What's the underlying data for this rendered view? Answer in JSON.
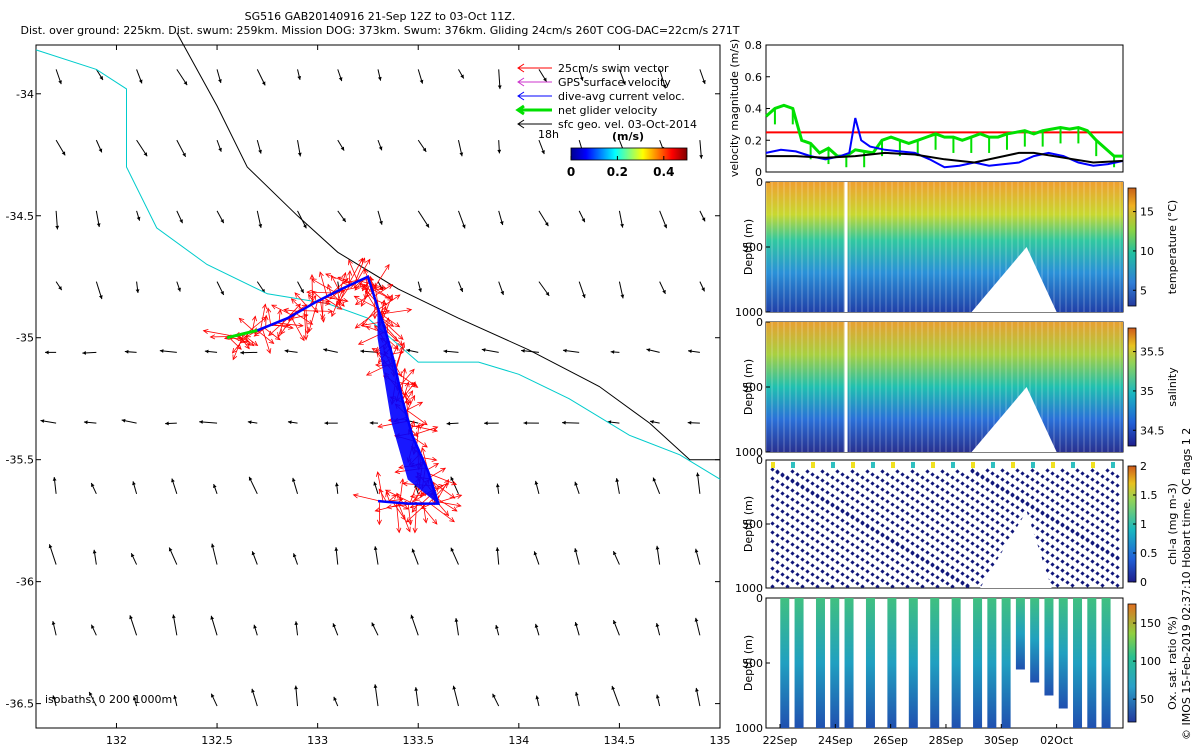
{
  "title": {
    "line1": "SG516 GAB20140916 21-Sep 12Z to 03-Oct 11Z.",
    "line2": "Dist. over ground: 225km. Dist. swum: 259km. Mission DOG: 373km. Swum: 376km. Gliding 24cm/s 260T COG-DAC=22cm/s 271T"
  },
  "colors": {
    "swim": "#ff0000",
    "gps": "#cc33cc",
    "dac": "#0000ff",
    "net": "#00e000",
    "geo": "#000000",
    "iso200": "#00cccc",
    "iso1000": "#000000"
  },
  "chart_data": [
    {
      "type": "map",
      "xlim": [
        131.6,
        135
      ],
      "ylim": [
        -36.6,
        -33.8
      ],
      "xticks": [
        132,
        132.5,
        133,
        133.5,
        134,
        134.5,
        135
      ],
      "xtick_labels": [
        "132",
        "132.5",
        "133",
        "133.5",
        "134",
        "134.5",
        "135"
      ],
      "yticks": [
        -34,
        -34.5,
        -35,
        -35.5,
        -36,
        -36.5
      ],
      "ytick_labels": [
        "-34",
        "-34.5",
        "-35",
        "-35.5",
        "-36",
        "-36.5"
      ],
      "legend": [
        {
          "label": "25cm/s swim vector",
          "color": "#ff0000"
        },
        {
          "label": "GPS surface velocity",
          "color": "#cc33cc"
        },
        {
          "label": "dive-avg current veloc.",
          "color": "#0000ff"
        },
        {
          "label": "net glider velocity",
          "color": "#00e000"
        },
        {
          "label": "sfc geo. vel. 03-Oct-2014",
          "color": "#000000"
        }
      ],
      "legend_note": "18h",
      "colorbar": {
        "label": "(m/s)",
        "ticks": [
          "0",
          "0.2",
          "0.4"
        ],
        "range": [
          0,
          0.5
        ]
      },
      "isobath_text": "isobaths: 0   200  1000m",
      "track": [
        {
          "lon": 132.55,
          "lat": -35.0
        },
        {
          "lon": 132.7,
          "lat": -34.97
        },
        {
          "lon": 132.85,
          "lat": -34.92
        },
        {
          "lon": 133.0,
          "lat": -34.85
        },
        {
          "lon": 133.12,
          "lat": -34.8
        },
        {
          "lon": 133.25,
          "lat": -34.75
        },
        {
          "lon": 133.3,
          "lat": -34.88
        },
        {
          "lon": 133.33,
          "lat": -34.95
        },
        {
          "lon": 133.38,
          "lat": -35.1
        },
        {
          "lon": 133.42,
          "lat": -35.25
        },
        {
          "lon": 133.47,
          "lat": -35.4
        },
        {
          "lon": 133.55,
          "lat": -35.55
        },
        {
          "lon": 133.6,
          "lat": -35.68
        },
        {
          "lon": 133.45,
          "lat": -35.68
        },
        {
          "lon": 133.3,
          "lat": -35.67
        }
      ],
      "isobath200": [
        {
          "lon": 131.6,
          "lat": -33.82
        },
        {
          "lon": 131.9,
          "lat": -33.9
        },
        {
          "lon": 132.05,
          "lat": -33.98
        },
        {
          "lon": 132.05,
          "lat": -34.3
        },
        {
          "lon": 132.2,
          "lat": -34.55
        },
        {
          "lon": 132.45,
          "lat": -34.7
        },
        {
          "lon": 132.75,
          "lat": -34.82
        },
        {
          "lon": 133.05,
          "lat": -34.86
        },
        {
          "lon": 133.25,
          "lat": -34.92
        },
        {
          "lon": 133.5,
          "lat": -35.1
        },
        {
          "lon": 133.8,
          "lat": -35.1
        },
        {
          "lon": 134.0,
          "lat": -35.15
        },
        {
          "lon": 134.25,
          "lat": -35.25
        },
        {
          "lon": 134.55,
          "lat": -35.4
        },
        {
          "lon": 134.8,
          "lat": -35.48
        },
        {
          "lon": 135.0,
          "lat": -35.58
        }
      ],
      "isobath1000": [
        {
          "lon": 132.3,
          "lat": -33.75
        },
        {
          "lon": 132.5,
          "lat": -34.05
        },
        {
          "lon": 132.65,
          "lat": -34.3
        },
        {
          "lon": 132.9,
          "lat": -34.5
        },
        {
          "lon": 133.1,
          "lat": -34.65
        },
        {
          "lon": 133.4,
          "lat": -34.8
        },
        {
          "lon": 133.7,
          "lat": -34.92
        },
        {
          "lon": 134.05,
          "lat": -35.05
        },
        {
          "lon": 134.4,
          "lat": -35.2
        },
        {
          "lon": 134.65,
          "lat": -35.35
        },
        {
          "lon": 134.85,
          "lat": -35.5
        },
        {
          "lon": 135.0,
          "lat": -35.5
        }
      ]
    },
    {
      "type": "line",
      "ylabel": "velocity magnitude (m/s)",
      "ylim": [
        0,
        0.8
      ],
      "yticks": [
        0,
        0.2,
        0.4,
        0.6,
        0.8
      ],
      "ytick_labels": [
        "0",
        "0.2",
        "0.4",
        "0.6",
        "0.8"
      ],
      "xlim": [
        0,
        12
      ],
      "threshold": 0.25,
      "series": [
        {
          "color": "#00e000",
          "x": [
            0,
            0.3,
            0.6,
            0.9,
            1.2,
            1.5,
            1.8,
            2.1,
            2.4,
            2.7,
            3.0,
            3.3,
            3.6,
            3.9,
            4.2,
            4.5,
            4.8,
            5.1,
            5.4,
            5.7,
            6.0,
            6.3,
            6.6,
            6.9,
            7.2,
            7.5,
            7.8,
            8.1,
            8.4,
            8.7,
            9.0,
            9.3,
            9.6,
            9.9,
            10.2,
            10.5,
            10.8,
            11.1,
            11.4,
            11.7,
            12.0
          ],
          "y": [
            0.35,
            0.4,
            0.42,
            0.4,
            0.2,
            0.18,
            0.12,
            0.15,
            0.1,
            0.1,
            0.14,
            0.13,
            0.12,
            0.2,
            0.22,
            0.2,
            0.18,
            0.2,
            0.22,
            0.24,
            0.22,
            0.22,
            0.2,
            0.22,
            0.24,
            0.22,
            0.22,
            0.24,
            0.25,
            0.26,
            0.24,
            0.26,
            0.27,
            0.28,
            0.27,
            0.28,
            0.26,
            0.2,
            0.15,
            0.1,
            0.1
          ]
        },
        {
          "color": "#0000ff",
          "x": [
            0,
            0.5,
            1.0,
            1.5,
            2.0,
            2.5,
            2.8,
            3.0,
            3.2,
            3.5,
            4.0,
            4.5,
            5.0,
            5.5,
            6.0,
            6.5,
            7.0,
            7.5,
            8.0,
            8.5,
            9.0,
            9.5,
            10.0,
            10.5,
            11.0,
            11.5,
            12.0
          ],
          "y": [
            0.12,
            0.14,
            0.13,
            0.1,
            0.08,
            0.1,
            0.12,
            0.34,
            0.2,
            0.16,
            0.14,
            0.13,
            0.12,
            0.08,
            0.03,
            0.04,
            0.06,
            0.04,
            0.05,
            0.06,
            0.1,
            0.12,
            0.1,
            0.06,
            0.04,
            0.05,
            0.07
          ]
        },
        {
          "color": "#000000",
          "x": [
            0,
            1,
            2,
            3,
            4,
            5,
            6,
            7,
            8,
            8.5,
            9,
            10,
            11,
            12
          ],
          "y": [
            0.1,
            0.1,
            0.09,
            0.1,
            0.12,
            0.11,
            0.08,
            0.06,
            0.1,
            0.12,
            0.12,
            0.09,
            0.06,
            0.07
          ]
        }
      ]
    },
    {
      "type": "heatmap",
      "ylabel": "Depth (m)",
      "ylim": [
        0,
        1000
      ],
      "yticks": [
        0,
        500,
        1000
      ],
      "ytick_labels": [
        "0",
        "500",
        "1000"
      ],
      "cbar_label": "temperature (°C)",
      "cbar_ticks": [
        "5",
        "10",
        "15"
      ],
      "cbar_range": [
        3,
        18
      ],
      "cbar_tick_values": [
        5,
        10,
        15
      ],
      "surface_value": 15,
      "deep_value": 5
    },
    {
      "type": "heatmap",
      "ylabel": "Depth (m)",
      "ylim": [
        0,
        1000
      ],
      "yticks": [
        0,
        500,
        1000
      ],
      "ytick_labels": [
        "0",
        "500",
        "1000"
      ],
      "cbar_label": "salinity",
      "cbar_ticks": [
        "34.5",
        "35",
        "35.5"
      ],
      "cbar_range": [
        34.3,
        35.8
      ],
      "cbar_tick_values": [
        34.5,
        35,
        35.5
      ],
      "surface_value": 35.4,
      "deep_value": 34.5
    },
    {
      "type": "scatter",
      "ylabel": "Depth (m)",
      "ylim": [
        0,
        1000
      ],
      "yticks": [
        0,
        500,
        1000
      ],
      "ytick_labels": [
        "0",
        "500",
        "1000"
      ],
      "cbar_label": "chl-a (mg m-3)",
      "cbar_ticks": [
        "0",
        "0.5",
        "1",
        "1.5",
        "2"
      ],
      "cbar_range": [
        0,
        2
      ],
      "cbar_tick_values": [
        0,
        0.5,
        1,
        1.5,
        2
      ]
    },
    {
      "type": "heatmap",
      "ylabel": "Depth (m)",
      "ylim": [
        0,
        1000
      ],
      "yticks": [
        0,
        500,
        1000
      ],
      "ytick_labels": [
        "0",
        "500",
        "1000"
      ],
      "cbar_label": "Ox. sat. ratio (%)",
      "cbar_ticks": [
        "50",
        "100",
        "150"
      ],
      "cbar_range": [
        20,
        175
      ],
      "cbar_tick_values": [
        50,
        100,
        150
      ],
      "xticks": [
        "22Sep",
        "24Sep",
        "26Sep",
        "28Sep",
        "30Sep",
        "02Oct"
      ]
    }
  ],
  "footer": "© IMOS 15-Feb-2019 02:37:10 Hobart time. QC flags 1  2"
}
